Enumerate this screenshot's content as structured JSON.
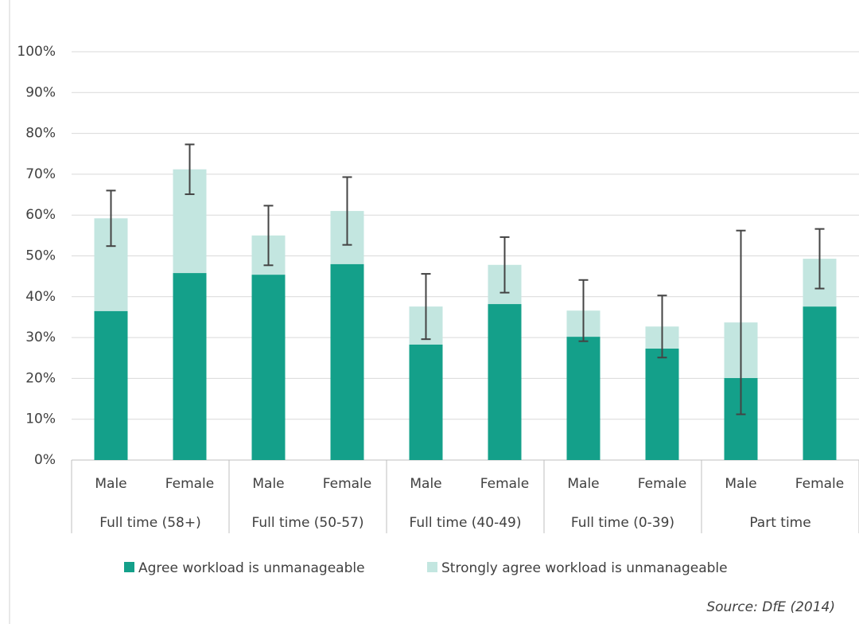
{
  "chart_data": {
    "type": "stacked-bar",
    "categories": [
      "Male",
      "Female",
      "Male",
      "Female",
      "Male",
      "Female",
      "Male",
      "Female",
      "Male",
      "Female"
    ],
    "groups": [
      "Full time (58+)",
      "Full time (50-57)",
      "Full time (40-49)",
      "Full time (0-39)",
      "Part time"
    ],
    "series": [
      {
        "name": "Agree workload is unmanageable",
        "color": "#14a08a",
        "values": [
          36.5,
          45.8,
          45.4,
          48.0,
          28.3,
          38.2,
          30.2,
          27.3,
          20.1,
          37.6
        ]
      },
      {
        "name": "Strongly agree workload is unmanageable",
        "color": "#c3e6e0",
        "values": [
          22.7,
          25.4,
          9.6,
          13.0,
          9.3,
          9.6,
          6.4,
          5.4,
          13.6,
          11.7
        ],
        "errors": [
          6.8,
          6.1,
          7.3,
          8.3,
          8.0,
          6.8,
          7.5,
          7.6,
          22.5,
          7.3
        ]
      }
    ],
    "error_color": "#444444",
    "ylim": [
      0,
      100
    ],
    "yticks": [
      {
        "value": 0,
        "label": "0%"
      },
      {
        "value": 10,
        "label": "10%"
      },
      {
        "value": 20,
        "label": "20%"
      },
      {
        "value": 30,
        "label": "30%"
      },
      {
        "value": 40,
        "label": "40%"
      },
      {
        "value": 50,
        "label": "50%"
      },
      {
        "value": 60,
        "label": "60%"
      },
      {
        "value": 70,
        "label": "70%"
      },
      {
        "value": 80,
        "label": "80%"
      },
      {
        "value": 90,
        "label": "90%"
      },
      {
        "value": 100,
        "label": "100%"
      }
    ],
    "grid": true,
    "source": "Source: DfE (2014)"
  }
}
